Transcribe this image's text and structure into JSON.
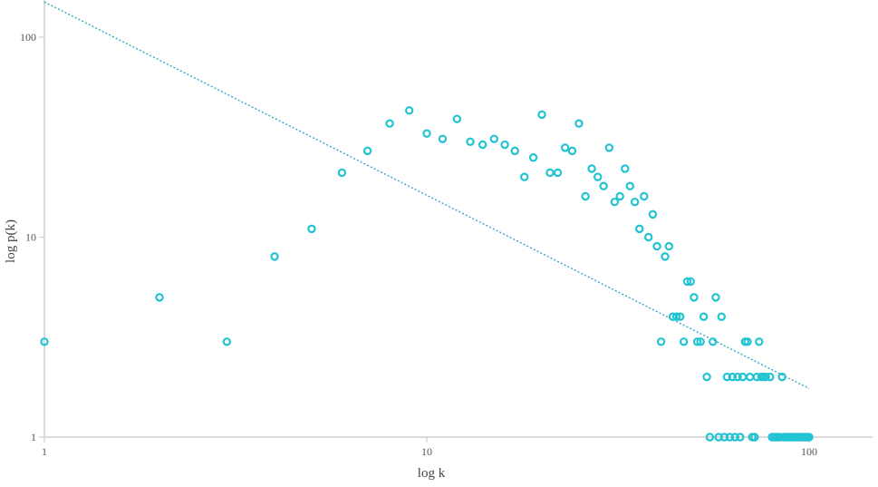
{
  "chart_data": {
    "type": "scatter",
    "title": "",
    "xlabel": "log k",
    "ylabel": "log p(k)",
    "x_scale": "log",
    "y_scale": "log",
    "xlim": [
      1,
      150
    ],
    "ylim": [
      1,
      150
    ],
    "grid": false,
    "legend": "none",
    "colors": {
      "points": "#22c3d3",
      "trend": "#3aa3c8",
      "axis": "#cfcfcf"
    },
    "x_ticks": [
      {
        "value": 1,
        "label": "1"
      },
      {
        "value": 10,
        "label": "10"
      },
      {
        "value": 100,
        "label": "100"
      }
    ],
    "y_ticks": [
      {
        "value": 1,
        "label": "1"
      },
      {
        "value": 10,
        "label": "10"
      },
      {
        "value": 100,
        "label": "100"
      }
    ],
    "trend_line": {
      "style": "dotted",
      "from": [
        1,
        150
      ],
      "to": [
        100,
        1.75
      ]
    },
    "points": [
      [
        1,
        3
      ],
      [
        2,
        5
      ],
      [
        3,
        3
      ],
      [
        4,
        8
      ],
      [
        5,
        11
      ],
      [
        6,
        21
      ],
      [
        7,
        27
      ],
      [
        8,
        37
      ],
      [
        9,
        43
      ],
      [
        10,
        33
      ],
      [
        11,
        31
      ],
      [
        12,
        39
      ],
      [
        13,
        30
      ],
      [
        14,
        29
      ],
      [
        15,
        31
      ],
      [
        16,
        29
      ],
      [
        17,
        27
      ],
      [
        18,
        20
      ],
      [
        19,
        25
      ],
      [
        20,
        41
      ],
      [
        21,
        21
      ],
      [
        22,
        21
      ],
      [
        23,
        28
      ],
      [
        24,
        27
      ],
      [
        25,
        37
      ],
      [
        26,
        16
      ],
      [
        27,
        22
      ],
      [
        28,
        20
      ],
      [
        29,
        18
      ],
      [
        30,
        28
      ],
      [
        31,
        15
      ],
      [
        32,
        16
      ],
      [
        33,
        22
      ],
      [
        34,
        18
      ],
      [
        35,
        15
      ],
      [
        36,
        11
      ],
      [
        37,
        16
      ],
      [
        38,
        10
      ],
      [
        39,
        13
      ],
      [
        40,
        9
      ],
      [
        41,
        3
      ],
      [
        42,
        8
      ],
      [
        43,
        9
      ],
      [
        44,
        4
      ],
      [
        45,
        4
      ],
      [
        46,
        4
      ],
      [
        47,
        3
      ],
      [
        48,
        6
      ],
      [
        49,
        6
      ],
      [
        50,
        5
      ],
      [
        51,
        3
      ],
      [
        52,
        3
      ],
      [
        53,
        4
      ],
      [
        54,
        2
      ],
      [
        55,
        1
      ],
      [
        56,
        3
      ],
      [
        57,
        5
      ],
      [
        58,
        1
      ],
      [
        59,
        4
      ],
      [
        60,
        1
      ],
      [
        61,
        2
      ],
      [
        62,
        1
      ],
      [
        63,
        2
      ],
      [
        64,
        1
      ],
      [
        65,
        2
      ],
      [
        66,
        1
      ],
      [
        67,
        2
      ],
      [
        68,
        3
      ],
      [
        69,
        3
      ],
      [
        70,
        2
      ],
      [
        71,
        1
      ],
      [
        72,
        1
      ],
      [
        73,
        2
      ],
      [
        74,
        3
      ],
      [
        75,
        2
      ],
      [
        76,
        2
      ],
      [
        77,
        2
      ],
      [
        79,
        2
      ],
      [
        80,
        1
      ],
      [
        81,
        1
      ],
      [
        82,
        1
      ],
      [
        83,
        1
      ],
      [
        84,
        1
      ],
      [
        85,
        2
      ],
      [
        86,
        1
      ],
      [
        87,
        1
      ],
      [
        88,
        1
      ],
      [
        89,
        1
      ],
      [
        90,
        1
      ],
      [
        91,
        1
      ],
      [
        92,
        1
      ],
      [
        93,
        1
      ],
      [
        94,
        1
      ],
      [
        95,
        1
      ],
      [
        96,
        1
      ],
      [
        97,
        1
      ],
      [
        98,
        1
      ],
      [
        99,
        1
      ],
      [
        100,
        1
      ]
    ]
  }
}
